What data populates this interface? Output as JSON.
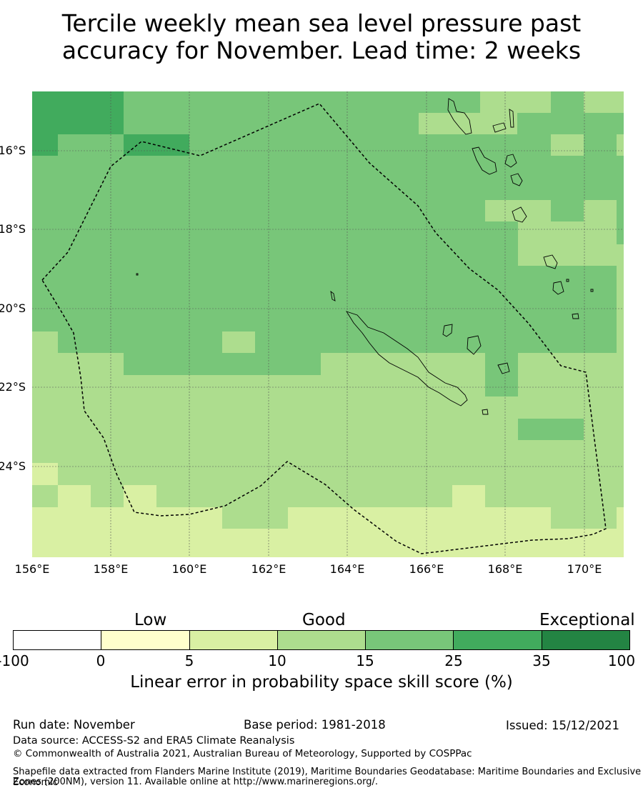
{
  "title_line1": "Tercile weekly mean sea level pressure past",
  "title_line2": "accuracy for November. Lead time: 2 weeks",
  "map": {
    "lat_labels": [
      "16°S",
      "18°S",
      "20°S",
      "22°S",
      "24°S"
    ],
    "lon_labels": [
      "156°E",
      "158°E",
      "160°E",
      "162°E",
      "164°E",
      "166°E",
      "168°E",
      "170°E"
    ]
  },
  "colorbar": {
    "categories": [
      "Low",
      "Good",
      "Exceptional"
    ],
    "ticks": [
      "-100",
      "0",
      "5",
      "10",
      "15",
      "25",
      "35",
      "100"
    ],
    "colors": [
      "#ffffff",
      "#ffffcc",
      "#d9f0a3",
      "#addd8e",
      "#78c679",
      "#41ab5d",
      "#238443"
    ],
    "label": "Linear error in probability space skill score (%)"
  },
  "footer": {
    "run_date": "Run date: November",
    "base_period": "Base period: 1981-2018",
    "issued": "Issued: 15/12/2021",
    "data_source": "Data source: ACCESS-S2 and ERA5 Climate Reanalysis",
    "copyright": "© Commonwealth of Australia 2021, Australian Bureau of Meteorology, Supported by COSPPac",
    "shapefile_line1": "Shapefile data extracted from Flanders Marine Institute (2019), Maritime Boundaries Geodatabase: Maritime Boundaries and Exclusive Economic",
    "shapefile_line2": "Zones (200NM), version 11. Available online at http://www.marineregions.org/."
  }
}
